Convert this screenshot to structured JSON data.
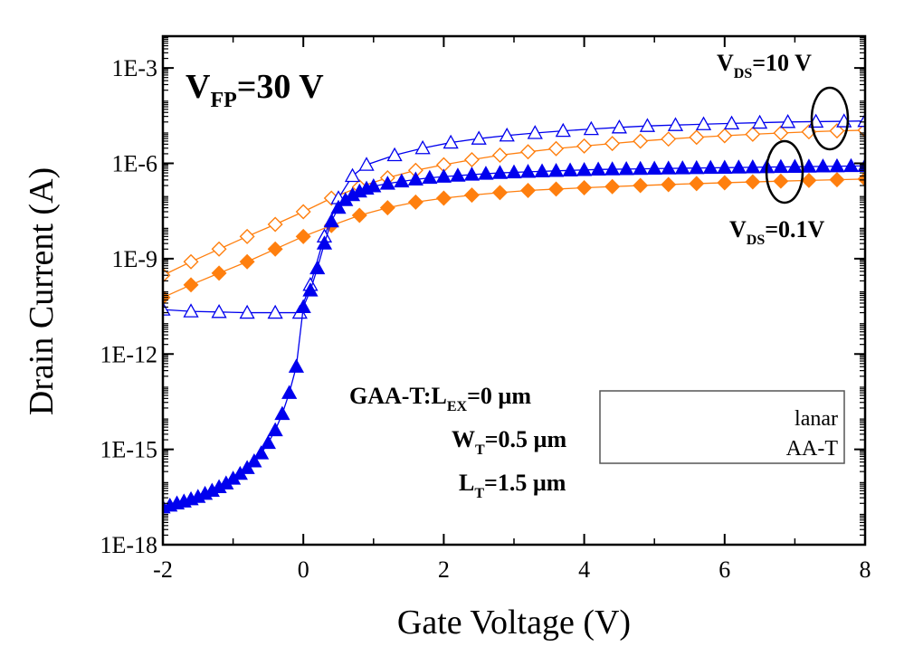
{
  "chart_data": {
    "type": "scatter",
    "xlabel": "Gate Voltage (V)",
    "ylabel": "Drain Current (A)",
    "xlim": [
      -2,
      8
    ],
    "ylim": [
      1e-18,
      0.01
    ],
    "y_scale": "log",
    "x_ticks": [
      "-2",
      "0",
      "2",
      "4",
      "6",
      "8"
    ],
    "y_ticks": [
      "1E-18",
      "1E-15",
      "1E-12",
      "1E-9",
      "1E-6",
      "1E-3"
    ],
    "y_tick_values": [
      1e-18,
      1e-15,
      1e-12,
      1e-09,
      1e-06,
      0.001
    ],
    "x_tick_values": [
      -2,
      0,
      2,
      4,
      6,
      8
    ],
    "annotations": {
      "vfp": {
        "main": "V",
        "sub": "FP",
        "rest": "=30 V"
      },
      "vds_high": {
        "main": "V",
        "sub": "DS",
        "rest": "=10 V"
      },
      "vds_low": {
        "main": "V",
        "sub": "DS",
        "rest": "=0.1V"
      },
      "gaa_line1": {
        "main": "GAA-T:L",
        "sub": "EX",
        "rest": "=0 µm"
      },
      "gaa_line2": {
        "main": "W",
        "sub": "T",
        "rest": "=0.5 µm"
      },
      "gaa_line3": {
        "main": "L",
        "sub": "T",
        "rest": "=1.5 µm"
      }
    },
    "legend": {
      "entries": [
        {
          "label": "Planar",
          "visible_text": "lanar"
        },
        {
          "label": "GAA-T",
          "visible_text": "AA-T"
        }
      ]
    },
    "colors": {
      "planar": "#ff7f0e",
      "gaa": "#0000ee"
    },
    "series": [
      {
        "group": "planar",
        "vds": "10 V",
        "marker": "diamond-open",
        "x": [
          -2,
          -1.6,
          -1.2,
          -0.8,
          -0.4,
          0,
          0.4,
          0.8,
          1.2,
          1.6,
          2,
          2.4,
          2.8,
          3.2,
          3.6,
          4,
          4.4,
          4.8,
          5.2,
          5.6,
          6,
          6.4,
          6.8,
          7.2,
          7.6,
          8
        ],
        "y": [
          3e-10,
          8e-10,
          2e-09,
          5e-09,
          1.2e-08,
          3e-08,
          8e-08,
          1.8e-07,
          3.5e-07,
          6e-07,
          9e-07,
          1.3e-06,
          1.8e-06,
          2.3e-06,
          2.9e-06,
          3.5e-06,
          4.2e-06,
          5e-06,
          5.8e-06,
          6.6e-06,
          7.4e-06,
          8.2e-06,
          9e-06,
          9.8e-06,
          1.05e-05,
          1.1e-05
        ]
      },
      {
        "group": "planar",
        "vds": "0.1V",
        "marker": "diamond-filled",
        "x": [
          -2,
          -1.6,
          -1.2,
          -0.8,
          -0.4,
          0,
          0.4,
          0.8,
          1.2,
          1.6,
          2,
          2.4,
          2.8,
          3.2,
          3.6,
          4,
          4.4,
          4.8,
          5.2,
          5.6,
          6,
          6.4,
          6.8,
          7.2,
          7.6,
          8
        ],
        "y": [
          6e-11,
          1.5e-10,
          3.5e-10,
          8e-10,
          2e-09,
          5e-09,
          1.1e-08,
          2.3e-08,
          4e-08,
          6e-08,
          8e-08,
          1e-07,
          1.2e-07,
          1.4e-07,
          1.55e-07,
          1.7e-07,
          1.85e-07,
          2e-07,
          2.15e-07,
          2.3e-07,
          2.45e-07,
          2.6e-07,
          2.75e-07,
          2.9e-07,
          3.05e-07,
          3.2e-07
        ]
      },
      {
        "group": "gaa",
        "vds": "10 V",
        "marker": "triangle-open",
        "x": [
          -2,
          -1.6,
          -1.2,
          -0.8,
          -0.4,
          -0.05,
          0.1,
          0.3,
          0.5,
          0.7,
          0.9,
          1.3,
          1.7,
          2.1,
          2.5,
          2.9,
          3.3,
          3.7,
          4.1,
          4.5,
          4.9,
          5.3,
          5.7,
          6.1,
          6.5,
          6.9,
          7.3,
          7.7,
          8
        ],
        "y": [
          2.5e-11,
          2.2e-11,
          2.1e-11,
          2e-11,
          2e-11,
          2e-11,
          1.5e-10,
          5e-09,
          8e-08,
          4e-07,
          9e-07,
          1.8e-06,
          3e-06,
          4.5e-06,
          6e-06,
          7.5e-06,
          9e-06,
          1.05e-05,
          1.2e-05,
          1.35e-05,
          1.5e-05,
          1.6e-05,
          1.7e-05,
          1.8e-05,
          1.9e-05,
          2e-05,
          2.05e-05,
          2.1e-05,
          2.15e-05
        ]
      },
      {
        "group": "gaa",
        "vds": "0.1V",
        "marker": "triangle-filled",
        "x": [
          -2,
          -1.9,
          -1.8,
          -1.7,
          -1.6,
          -1.5,
          -1.4,
          -1.3,
          -1.2,
          -1.1,
          -1,
          -0.9,
          -0.8,
          -0.7,
          -0.6,
          -0.5,
          -0.4,
          -0.3,
          -0.2,
          -0.1,
          0,
          0.1,
          0.2,
          0.3,
          0.4,
          0.5,
          0.6,
          0.7,
          0.8,
          0.9,
          1,
          1.2,
          1.4,
          1.6,
          1.8,
          2,
          2.2,
          2.4,
          2.6,
          2.8,
          3,
          3.2,
          3.4,
          3.6,
          3.8,
          4,
          4.2,
          4.4,
          4.6,
          4.8,
          5,
          5.2,
          5.4,
          5.6,
          5.8,
          6,
          6.2,
          6.4,
          6.6,
          6.8,
          7,
          7.2,
          7.4,
          7.6,
          7.8,
          8
        ],
        "y": [
          1.5e-17,
          1.7e-17,
          2e-17,
          2.3e-17,
          2.7e-17,
          3.2e-17,
          4e-17,
          5e-17,
          6.5e-17,
          8.5e-17,
          1.2e-16,
          1.7e-16,
          2.6e-16,
          4.2e-16,
          7.5e-16,
          1.6e-15,
          4e-15,
          1.3e-14,
          6e-14,
          4e-13,
          3e-11,
          1e-10,
          5e-10,
          3e-09,
          1.5e-08,
          4e-08,
          7e-08,
          1e-07,
          1.3e-07,
          1.6e-07,
          1.9e-07,
          2.3e-07,
          2.7e-07,
          3.1e-07,
          3.5e-07,
          3.8e-07,
          4.1e-07,
          4.4e-07,
          4.7e-07,
          5e-07,
          5.2e-07,
          5.4e-07,
          5.6e-07,
          5.8e-07,
          6e-07,
          6.2e-07,
          6.4e-07,
          6.5e-07,
          6.6e-07,
          6.7e-07,
          6.8e-07,
          6.9e-07,
          7e-07,
          7.1e-07,
          7.2e-07,
          7.3e-07,
          7.4e-07,
          7.5e-07,
          7.6e-07,
          7.7e-07,
          7.8e-07,
          7.9e-07,
          8e-07,
          8.1e-07,
          8.2e-07,
          8.3e-07
        ]
      }
    ]
  }
}
